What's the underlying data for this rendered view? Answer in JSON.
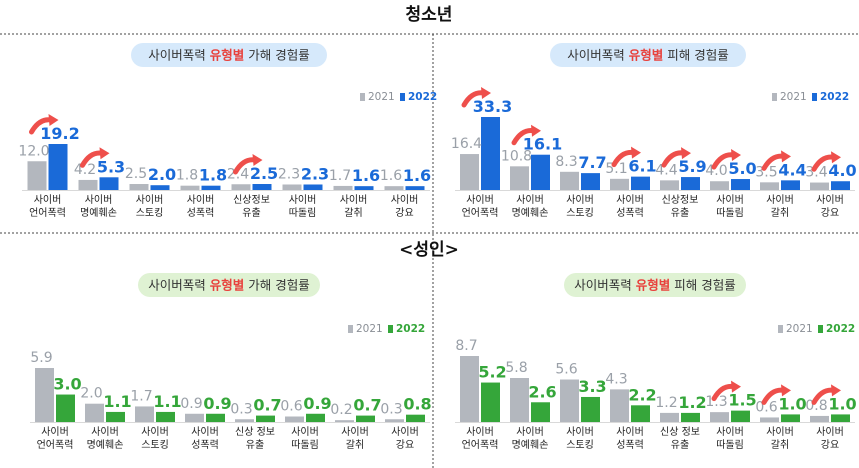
{
  "section_titles": {
    "youth": "청소년",
    "adult": "<성인>"
  },
  "legend": {
    "prev": "2021",
    "curr": "2022"
  },
  "colors": {
    "prev": "#b3b7be",
    "youth_curr": "#1a6ad8",
    "adult_curr": "#35a63a",
    "arrow": "#ee4f4b",
    "youth_pill": "#d6e9fb",
    "adult_pill": "#dff2d3"
  },
  "chart_data": [
    {
      "type": "bar",
      "id": "youth-perpetration",
      "title": {
        "pre": "사이버폭력 ",
        "em": "유형별",
        "post": " 가해 경험률"
      },
      "categories": [
        [
          "사이버",
          "언어폭력"
        ],
        [
          "사이버",
          "명예훼손"
        ],
        [
          "사이버",
          "스토킹"
        ],
        [
          "사이버",
          "성폭력"
        ],
        [
          "신상정보",
          "유출"
        ],
        [
          "사이버",
          "따돌림"
        ],
        [
          "사이버",
          "갈취"
        ],
        [
          "사이버",
          "강요"
        ]
      ],
      "series": [
        {
          "name": "2021",
          "values": [
            12.0,
            4.2,
            2.5,
            1.8,
            2.4,
            2.3,
            1.7,
            1.6
          ]
        },
        {
          "name": "2022",
          "values": [
            19.2,
            5.3,
            2.0,
            1.8,
            2.5,
            2.3,
            1.6,
            1.6
          ]
        }
      ],
      "labels": [
        [
          "12.0",
          "4.2",
          "2.5",
          "1.8",
          "2.4",
          "2.3",
          "1.7",
          "1.6"
        ],
        [
          "19.2",
          "5.3",
          "2.0",
          "1.8",
          "2.5",
          "2.3",
          "1.6",
          "1.6"
        ]
      ],
      "increase_arrows": [
        0,
        1,
        4
      ],
      "ylim": [
        0,
        20
      ]
    },
    {
      "type": "bar",
      "id": "youth-victimization",
      "title": {
        "pre": "사이버폭력 ",
        "em": "유형별",
        "post": " 피해 경험률"
      },
      "categories": [
        [
          "사이버",
          "언어폭력"
        ],
        [
          "사이버",
          "명예훼손"
        ],
        [
          "사이버",
          "스토킹"
        ],
        [
          "사이버",
          "성폭력"
        ],
        [
          "신상정보",
          "유출"
        ],
        [
          "사이버",
          "따돌림"
        ],
        [
          "사이버",
          "갈취"
        ],
        [
          "사이버",
          "강요"
        ]
      ],
      "series": [
        {
          "name": "2021",
          "values": [
            16.4,
            10.8,
            8.3,
            5.1,
            4.4,
            4.0,
            3.5,
            3.4
          ]
        },
        {
          "name": "2022",
          "values": [
            33.3,
            16.1,
            7.7,
            6.1,
            5.9,
            5.0,
            4.4,
            4.0
          ]
        }
      ],
      "labels": [
        [
          "16.4",
          "10.8",
          "8.3",
          "5.1",
          "4.4",
          "4.0",
          "3.5",
          "3.4"
        ],
        [
          "33.3",
          "16.1",
          "7.7",
          "6.1",
          "5.9",
          "5.0",
          "4.4",
          "4.0"
        ]
      ],
      "increase_arrows": [
        0,
        1,
        3,
        4,
        5,
        6,
        7
      ],
      "ylim": [
        0,
        34
      ]
    },
    {
      "type": "bar",
      "id": "adult-perpetration",
      "title": {
        "pre": "사이버폭력 ",
        "em": "유형별",
        "post": " 가해 경험률"
      },
      "categories": [
        [
          "사이버",
          "언어폭력"
        ],
        [
          "사이버",
          "명예훼손"
        ],
        [
          "사이버",
          "스토킹"
        ],
        [
          "사이버",
          "성폭력"
        ],
        [
          "신상 정보",
          "유출"
        ],
        [
          "사이버",
          "따돌림"
        ],
        [
          "사이버",
          "갈취"
        ],
        [
          "사이버",
          "강요"
        ]
      ],
      "series": [
        {
          "name": "2021",
          "values": [
            5.9,
            2.0,
            1.7,
            0.9,
            0.3,
            0.6,
            0.2,
            0.3
          ]
        },
        {
          "name": "2022",
          "values": [
            3.0,
            1.1,
            1.1,
            0.9,
            0.7,
            0.9,
            0.7,
            0.8
          ]
        }
      ],
      "labels": [
        [
          "5.9",
          "2.0",
          "1.7",
          "0.9",
          "0.3",
          "0.6",
          "0.2",
          "0.3"
        ],
        [
          "3.0",
          "1.1",
          "1.1",
          "0.9",
          "0.7",
          "0.9",
          "0.7",
          "0.8"
        ]
      ],
      "increase_arrows": [],
      "ylim": [
        0,
        6.5
      ]
    },
    {
      "type": "bar",
      "id": "adult-victimization",
      "title": {
        "pre": "사이버폭력 ",
        "em": "유형별",
        "post": " 피해 경험률"
      },
      "categories": [
        [
          "사이버",
          "언어폭력"
        ],
        [
          "사이버",
          "명예훼손"
        ],
        [
          "사이버",
          "스토킹"
        ],
        [
          "사이버",
          "성폭력"
        ],
        [
          "신상 정보",
          "유출"
        ],
        [
          "사이버",
          "따돌림"
        ],
        [
          "사이버",
          "갈취"
        ],
        [
          "사이버",
          "강요"
        ]
      ],
      "series": [
        {
          "name": "2021",
          "values": [
            8.7,
            5.8,
            5.6,
            4.3,
            1.2,
            1.3,
            0.6,
            0.8
          ]
        },
        {
          "name": "2022",
          "values": [
            5.2,
            2.6,
            3.3,
            2.2,
            1.2,
            1.5,
            1.0,
            1.0
          ]
        }
      ],
      "labels": [
        [
          "8.7",
          "5.8",
          "5.6",
          "4.3",
          "1.2",
          "1.3",
          "0.6",
          "0.8"
        ],
        [
          "5.2",
          "2.6",
          "3.3",
          "2.2",
          "1.2",
          "1.5",
          "1.0",
          "1.0"
        ]
      ],
      "increase_arrows": [
        5,
        6,
        7
      ],
      "ylim": [
        0,
        9
      ]
    }
  ]
}
